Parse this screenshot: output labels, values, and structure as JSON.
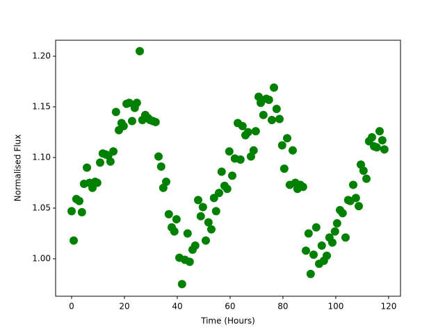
{
  "chart_data": {
    "type": "scatter",
    "xlabel": "Time (Hours)",
    "ylabel": "Normalised Flux",
    "color": "#008000",
    "x": [
      0,
      0.8,
      1.8,
      2.9,
      3.9,
      4.7,
      5.8,
      6.8,
      7.9,
      8.9,
      9.7,
      10.8,
      11.8,
      12.9,
      13.9,
      14.7,
      15.8,
      16.8,
      17.9,
      18.9,
      19.7,
      20.8,
      21.8,
      22.9,
      23.9,
      24.7,
      25.8,
      26.8,
      27.9,
      28.9,
      29.7,
      30.8,
      31.8,
      32.9,
      33.9,
      34.7,
      35.8,
      36.8,
      37.9,
      38.9,
      39.7,
      40.8,
      41.8,
      42.9,
      43.9,
      44.7,
      45.8,
      46.8,
      47.9,
      48.9,
      49.7,
      50.8,
      51.8,
      52.9,
      53.9,
      54.7,
      55.8,
      56.8,
      57.9,
      58.9,
      59.7,
      60.8,
      61.8,
      62.9,
      63.9,
      64.7,
      65.8,
      66.8,
      67.9,
      68.9,
      69.7,
      70.8,
      71.6,
      72.6,
      73.7,
      74.7,
      75.8,
      76.6,
      77.6,
      78.7,
      79.7,
      80.5,
      81.6,
      82.6,
      83.7,
      84.7,
      85.5,
      86.6,
      87.6,
      88.7,
      89.7,
      90.5,
      91.6,
      92.6,
      93.7,
      94.7,
      95.5,
      96.6,
      97.6,
      98.7,
      99.7,
      100.5,
      101.6,
      102.6,
      103.7,
      104.7,
      105.5,
      106.6,
      107.6,
      108.7,
      109.5,
      110.5,
      111.6,
      112.6,
      113.7,
      114.5,
      115.5,
      116.6,
      117.6,
      118.4
    ],
    "values": [
      1.047,
      1.018,
      1.059,
      1.057,
      1.046,
      1.074,
      1.09,
      1.075,
      1.07,
      1.076,
      1.075,
      1.095,
      1.104,
      1.103,
      1.102,
      1.096,
      1.106,
      1.145,
      1.127,
      1.134,
      1.131,
      1.153,
      1.154,
      1.136,
      1.149,
      1.154,
      1.205,
      1.137,
      1.142,
      1.139,
      1.137,
      1.136,
      1.135,
      1.101,
      1.091,
      1.07,
      1.076,
      1.044,
      1.031,
      1.027,
      1.039,
      1.001,
      0.975,
      0.999,
      1.025,
      0.997,
      1.009,
      1.013,
      1.058,
      1.042,
      1.051,
      1.018,
      1.036,
      1.029,
      1.06,
      1.047,
      1.065,
      1.086,
      1.072,
      1.069,
      1.106,
      1.082,
      1.099,
      1.134,
      1.098,
      1.131,
      1.122,
      1.125,
      1.101,
      1.107,
      1.126,
      1.16,
      1.154,
      1.142,
      1.158,
      1.157,
      1.137,
      1.169,
      1.148,
      1.138,
      1.112,
      1.089,
      1.119,
      1.073,
      1.107,
      1.075,
      1.069,
      1.073,
      1.071,
      1.008,
      1.025,
      0.985,
      1.004,
      1.031,
      0.995,
      1.013,
      0.998,
      1.003,
      1.021,
      1.016,
      1.027,
      1.035,
      1.048,
      1.045,
      1.021,
      1.058,
      1.057,
      1.073,
      1.06,
      1.052,
      1.093,
      1.087,
      1.079,
      1.116,
      1.12,
      1.111,
      1.11,
      1.126,
      1.117,
      1.108
    ],
    "xlim": [
      -6.05,
      124.5
    ],
    "xticks": [
      0,
      20,
      40,
      60,
      80,
      100,
      120
    ],
    "ylim": [
      0.963,
      1.2158
    ],
    "yticks": [
      {
        "value": 1.0,
        "label": "1.00"
      },
      {
        "value": 1.05,
        "label": "1.05"
      },
      {
        "value": 1.1,
        "label": "1.10"
      },
      {
        "value": 1.15,
        "label": "1.15"
      },
      {
        "value": 1.2,
        "label": "1.20"
      }
    ]
  }
}
